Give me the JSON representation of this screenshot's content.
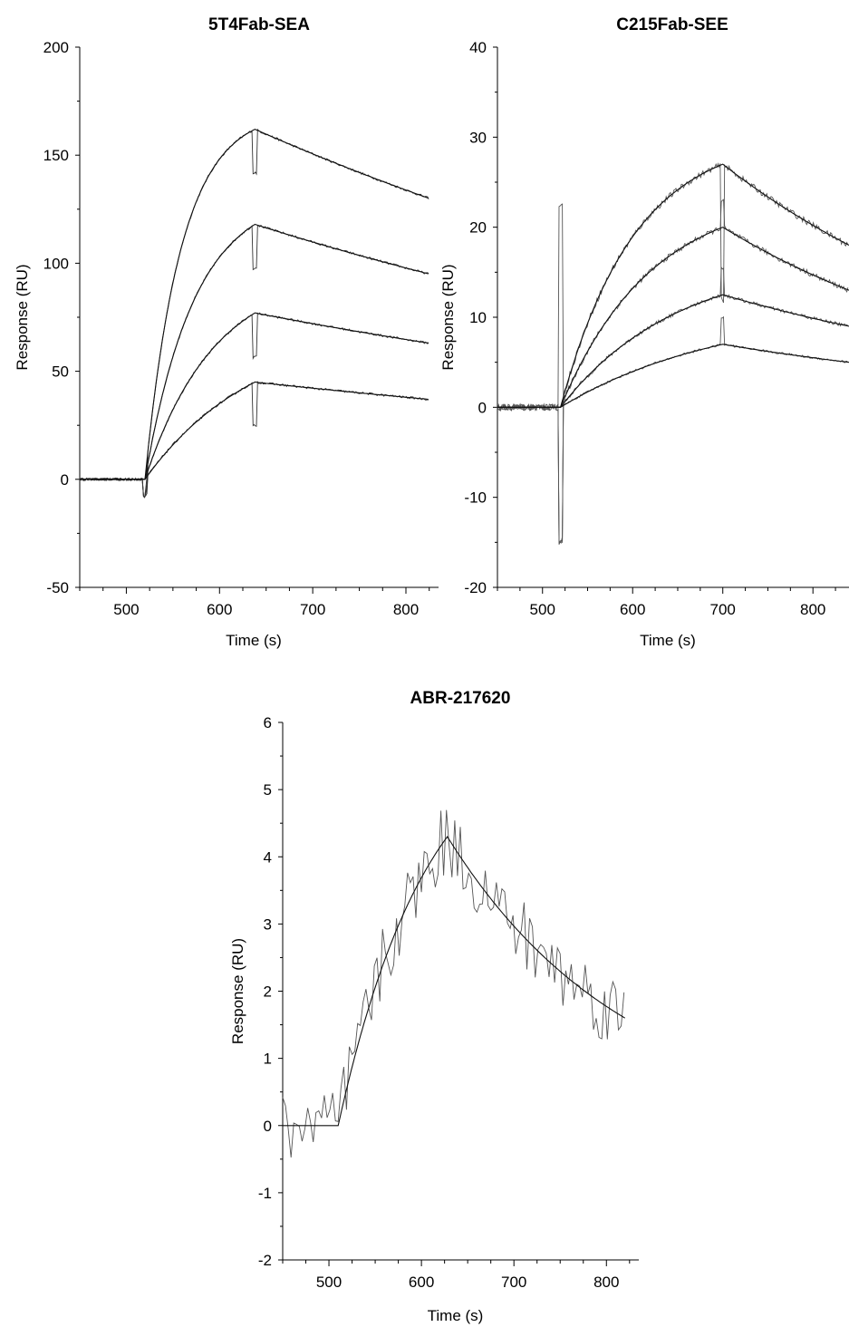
{
  "chart_data": [
    {
      "type": "line",
      "title": "5T4Fab-SEA",
      "xlabel": "Time (s)",
      "ylabel": "Response (RU)",
      "xlim": [
        450,
        835
      ],
      "ylim": [
        -50,
        200
      ],
      "xticks": [
        500,
        600,
        700,
        800
      ],
      "yticks": [
        200,
        150,
        100,
        50,
        0,
        -50
      ],
      "grid": false,
      "legend": "none",
      "injection": {
        "start": 520,
        "end": 638,
        "stop": 825
      },
      "baseline_noise": 1.2,
      "peaks": [
        162,
        118,
        77,
        45
      ],
      "end_values": [
        130,
        95,
        63,
        37
      ],
      "assoc_curvature": [
        3.0,
        2.2,
        1.6,
        1.0
      ]
    },
    {
      "type": "line",
      "title": "C215Fab-SEE",
      "xlabel": "Time (s)",
      "ylabel": "Response (RU)",
      "xlim": [
        450,
        840
      ],
      "ylim": [
        -20,
        40
      ],
      "xticks": [
        500,
        600,
        700,
        800
      ],
      "yticks": [
        40,
        30,
        20,
        10,
        0,
        -10,
        -20
      ],
      "grid": false,
      "legend": "none",
      "injection": {
        "start": 520,
        "end": 700,
        "stop": 840
      },
      "baseline_noise": 0.6,
      "peaks": [
        27,
        20,
        12.5,
        7
      ],
      "end_values": [
        18,
        13,
        9,
        5
      ],
      "assoc_curvature": [
        2.2,
        1.8,
        1.4,
        1.0
      ]
    },
    {
      "type": "line",
      "title": "ABR-217620",
      "xlabel": "Time (s)",
      "ylabel": "Response (RU)",
      "xlim": [
        450,
        835
      ],
      "ylim": [
        -2,
        6
      ],
      "xticks": [
        500,
        600,
        700,
        800
      ],
      "yticks": [
        6,
        5,
        4,
        3,
        2,
        1,
        0,
        -1,
        -2
      ],
      "grid": false,
      "legend": "none",
      "injection": {
        "start": 510,
        "end": 628,
        "stop": 820
      },
      "baseline_noise": 0.6,
      "peaks": [
        4.3
      ],
      "end_values": [
        1.6
      ],
      "assoc_curvature": [
        1.2
      ]
    }
  ]
}
